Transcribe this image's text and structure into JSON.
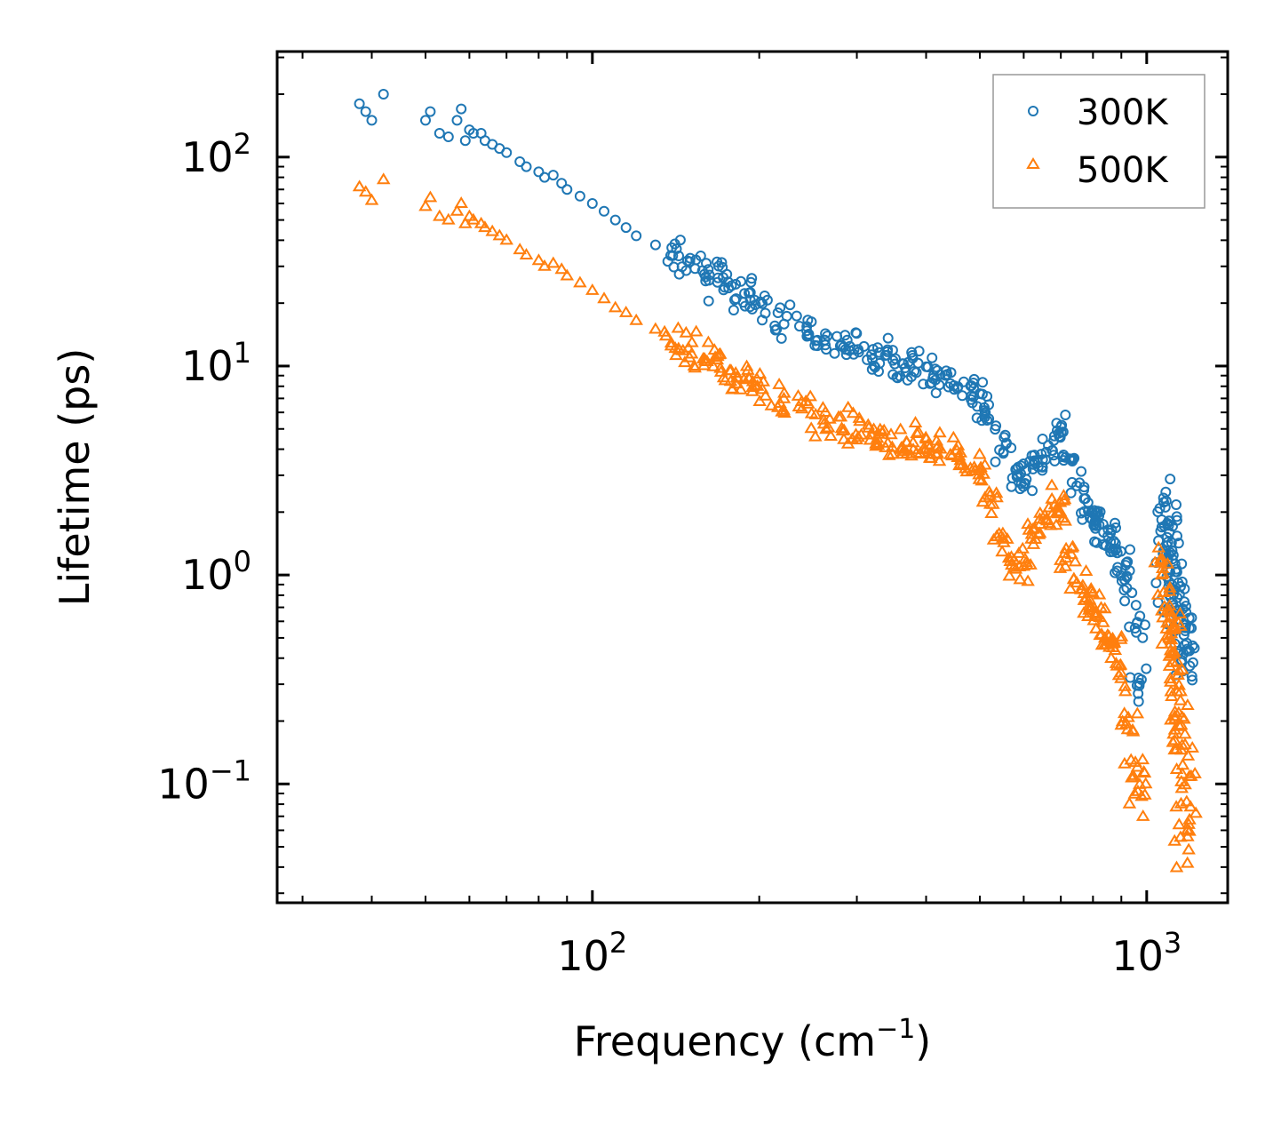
{
  "chart_data": {
    "type": "scatter",
    "title": "",
    "xlabel": "Frequency (cm",
    "xlabel_sup": "−1",
    "xlabel_close": ")",
    "ylabel": "Lifetime (ps)",
    "xscale": "log",
    "yscale": "log",
    "xlim": [
      27,
      1400
    ],
    "ylim": [
      0.027,
      320
    ],
    "x_ticks": [
      {
        "value": 100,
        "base": "10",
        "exp": "2"
      },
      {
        "value": 1000,
        "base": "10",
        "exp": "3"
      }
    ],
    "y_ticks": [
      {
        "value": 0.1,
        "base": "10",
        "exp": "−1"
      },
      {
        "value": 1,
        "base": "10",
        "exp": "0"
      },
      {
        "value": 10,
        "base": "10",
        "exp": "1"
      },
      {
        "value": 100,
        "base": "10",
        "exp": "2"
      }
    ],
    "legend_position": "top-right",
    "series": [
      {
        "name": "300K",
        "marker": "circle",
        "color": "#1f77b4",
        "x": [
          38,
          39,
          40,
          42,
          50,
          51,
          53,
          55,
          57,
          58,
          59,
          60,
          61,
          63,
          64,
          66,
          68,
          70,
          74,
          76,
          80,
          82,
          85,
          88,
          90,
          95,
          100,
          105,
          110,
          115,
          120,
          130,
          140,
          150,
          160,
          170,
          180,
          190,
          200,
          220,
          240,
          260,
          280,
          300,
          320,
          340,
          360,
          380,
          400,
          420,
          450,
          480,
          500,
          520,
          550,
          580,
          600,
          620,
          650,
          680,
          700,
          720,
          750,
          780,
          800,
          820,
          850,
          870,
          900,
          930,
          950,
          970,
          1080,
          1100,
          1120,
          1150,
          1180
        ],
        "y": [
          180,
          165,
          150,
          200,
          150,
          165,
          130,
          125,
          150,
          170,
          120,
          135,
          130,
          130,
          120,
          115,
          110,
          105,
          95,
          90,
          85,
          80,
          82,
          75,
          70,
          65,
          60,
          55,
          50,
          46,
          42,
          38,
          34,
          31,
          28,
          26,
          23,
          21,
          19,
          17,
          15,
          13.5,
          12.5,
          12,
          11,
          11,
          10,
          10,
          9.5,
          9,
          8,
          7.5,
          7,
          5.5,
          4,
          3,
          2.8,
          3.2,
          3.8,
          4.2,
          4.8,
          3.5,
          2.5,
          2,
          1.9,
          1.7,
          1.5,
          1.4,
          1.2,
          0.9,
          0.6,
          0.3,
          1.5,
          1.2,
          0.9,
          0.6,
          0.5
        ]
      },
      {
        "name": "500K",
        "marker": "triangle",
        "color": "#ff7f0e",
        "x": [
          38,
          39,
          40,
          42,
          50,
          51,
          53,
          55,
          57,
          58,
          59,
          60,
          61,
          63,
          64,
          66,
          68,
          70,
          74,
          76,
          80,
          82,
          85,
          88,
          90,
          95,
          100,
          105,
          110,
          115,
          120,
          130,
          140,
          150,
          160,
          170,
          180,
          190,
          200,
          220,
          240,
          260,
          280,
          300,
          320,
          340,
          360,
          380,
          400,
          420,
          450,
          480,
          500,
          520,
          550,
          580,
          600,
          620,
          650,
          680,
          700,
          720,
          750,
          780,
          800,
          820,
          850,
          870,
          900,
          930,
          950,
          970,
          1080,
          1100,
          1120,
          1150,
          1180
        ],
        "y": [
          72,
          68,
          62,
          78,
          58,
          64,
          52,
          50,
          55,
          60,
          48,
          52,
          50,
          48,
          46,
          44,
          42,
          40,
          36,
          34,
          32,
          30,
          31,
          29,
          27,
          25,
          23,
          21,
          19,
          18,
          16.5,
          15,
          13,
          12,
          11,
          10,
          9,
          8.5,
          8,
          7,
          6.2,
          5.6,
          5.1,
          4.8,
          4.6,
          4.4,
          4.3,
          4.2,
          4.1,
          4,
          3.8,
          3.5,
          3,
          2.2,
          1.5,
          1.2,
          1.1,
          1.5,
          1.8,
          2.2,
          2,
          1.2,
          0.9,
          0.8,
          0.7,
          0.6,
          0.5,
          0.45,
          0.35,
          0.2,
          0.12,
          0.09,
          0.8,
          0.5,
          0.3,
          0.15,
          0.08
        ]
      }
    ]
  }
}
